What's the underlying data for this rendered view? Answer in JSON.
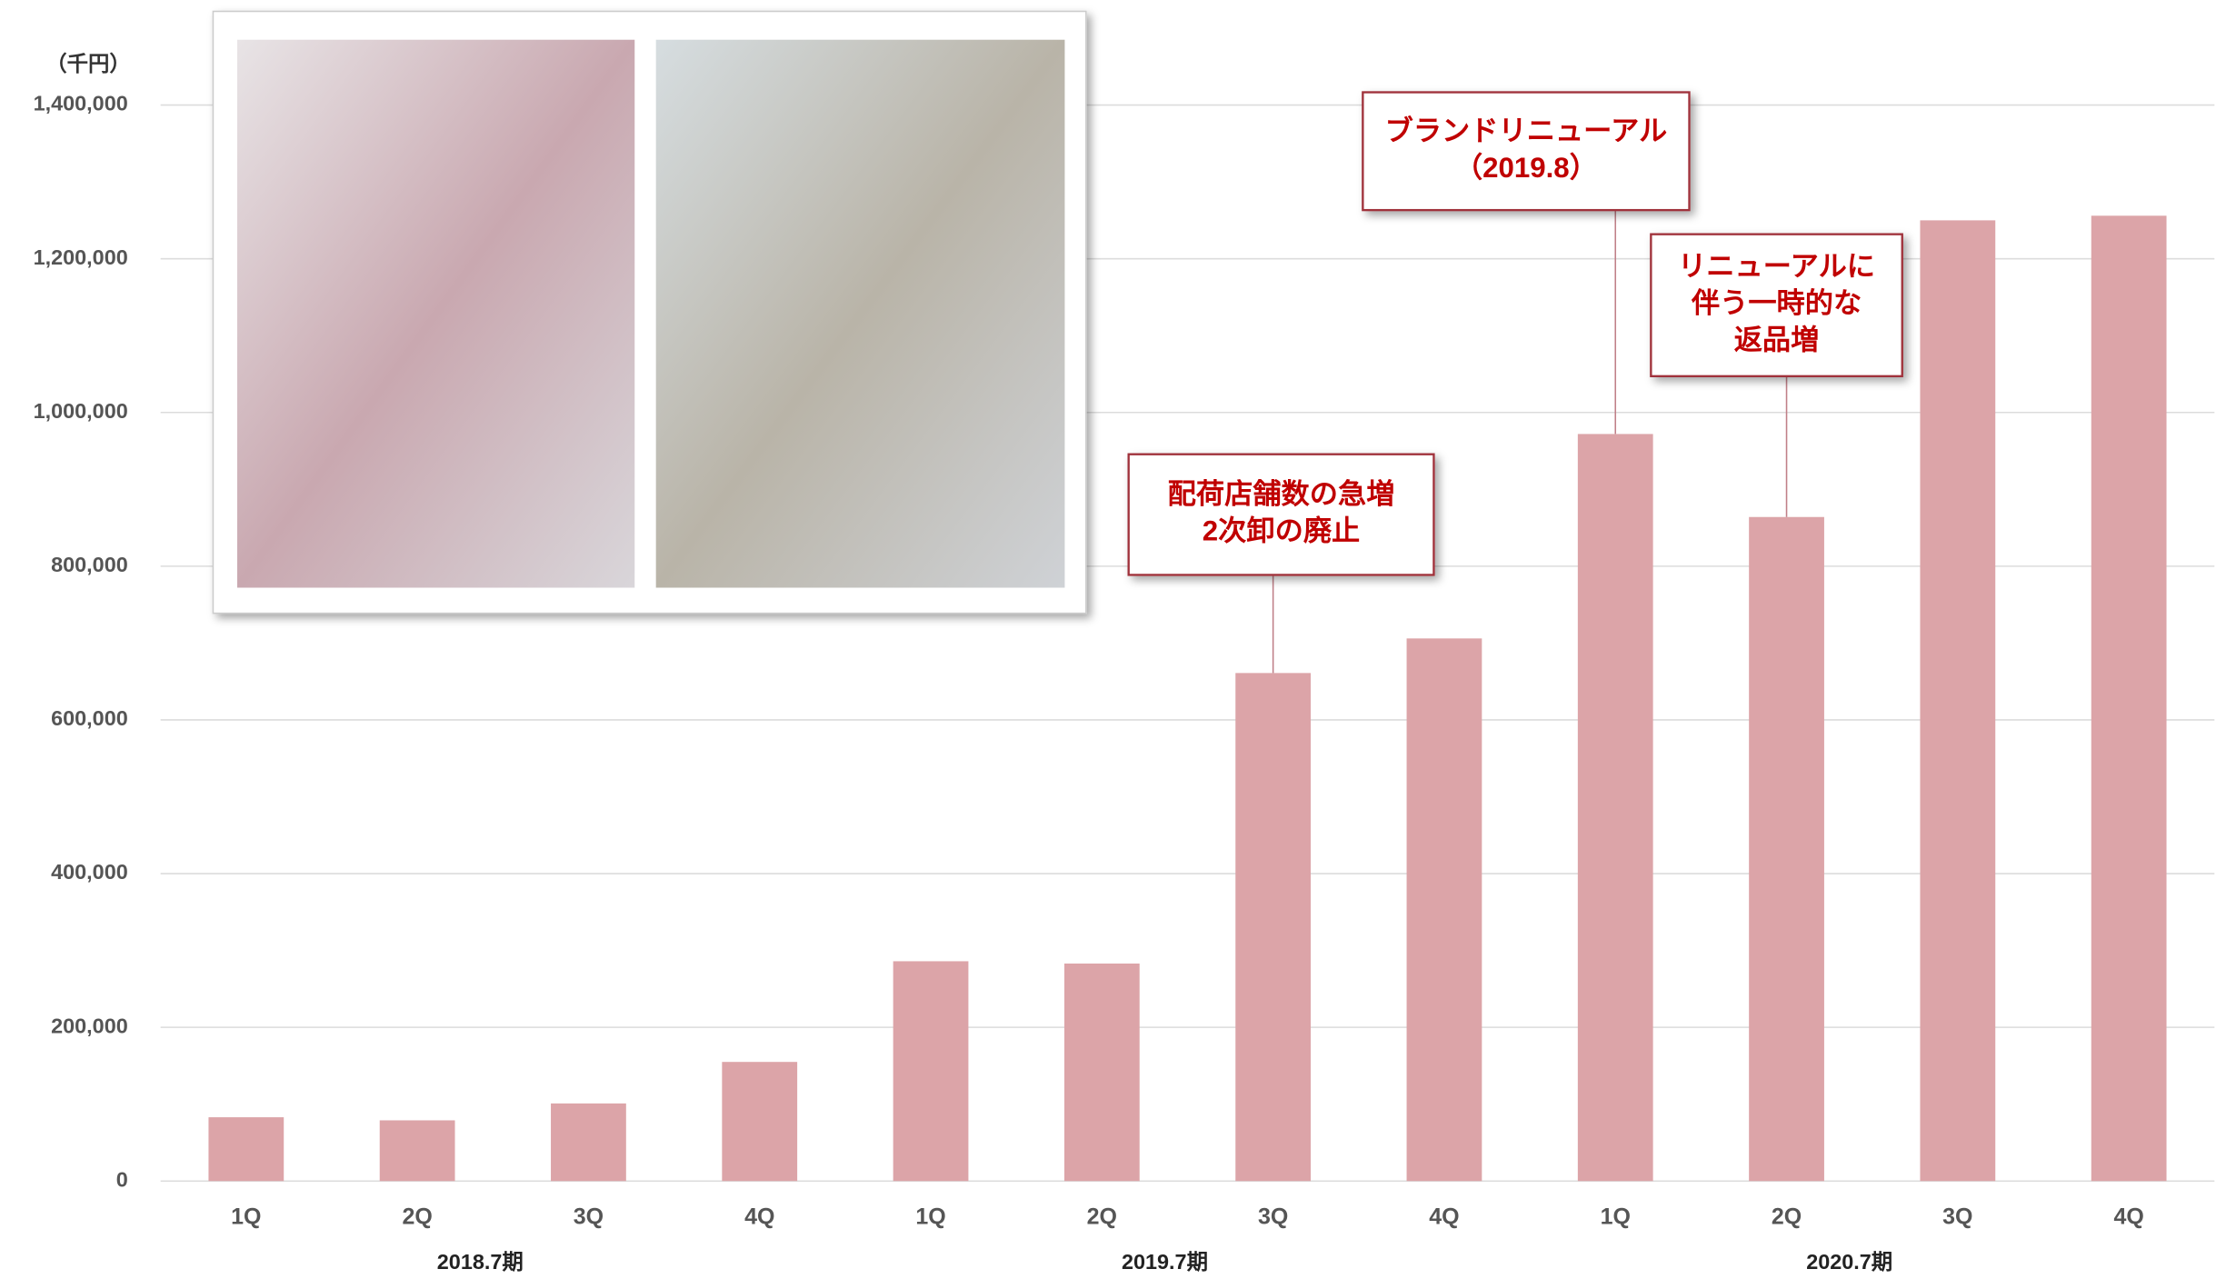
{
  "chart_data": {
    "type": "bar",
    "unit_label": "（千円）",
    "categories": [
      "1Q",
      "2Q",
      "3Q",
      "4Q",
      "1Q",
      "2Q",
      "3Q",
      "4Q",
      "1Q",
      "2Q",
      "3Q",
      "4Q"
    ],
    "groups": [
      "2018.7期",
      "2019.7期",
      "2020.7期"
    ],
    "values": [
      83000,
      79000,
      101000,
      155000,
      286000,
      283000,
      661000,
      706000,
      972000,
      864000,
      1250000,
      1256000
    ],
    "color": "#dca4a8",
    "ylim": [
      0,
      1400000
    ],
    "yticks": [
      0,
      {
        "value": 200000,
        "label": "200,000"
      },
      {
        "value": 400000,
        "label": "400,000"
      },
      {
        "value": 600000,
        "label": "600,000"
      },
      {
        "value": 800000,
        "label": "800,000"
      },
      {
        "value": 1000000,
        "label": "1,000,000"
      },
      {
        "value": 1200000,
        "label": "1,200,000"
      },
      {
        "value": 1400000,
        "label": "1,400,000"
      }
    ],
    "grid": true,
    "annotations": [
      {
        "category": 6,
        "lines": [
          "配荷店舗数の急増",
          "2次卸の廃止"
        ]
      },
      {
        "category": 8,
        "lines": [
          "ブランドリニューアル",
          "（2019.8）"
        ]
      },
      {
        "category": 9,
        "lines": [
          "リニューアルに",
          "伴う一時的な",
          "返品増"
        ]
      }
    ]
  }
}
